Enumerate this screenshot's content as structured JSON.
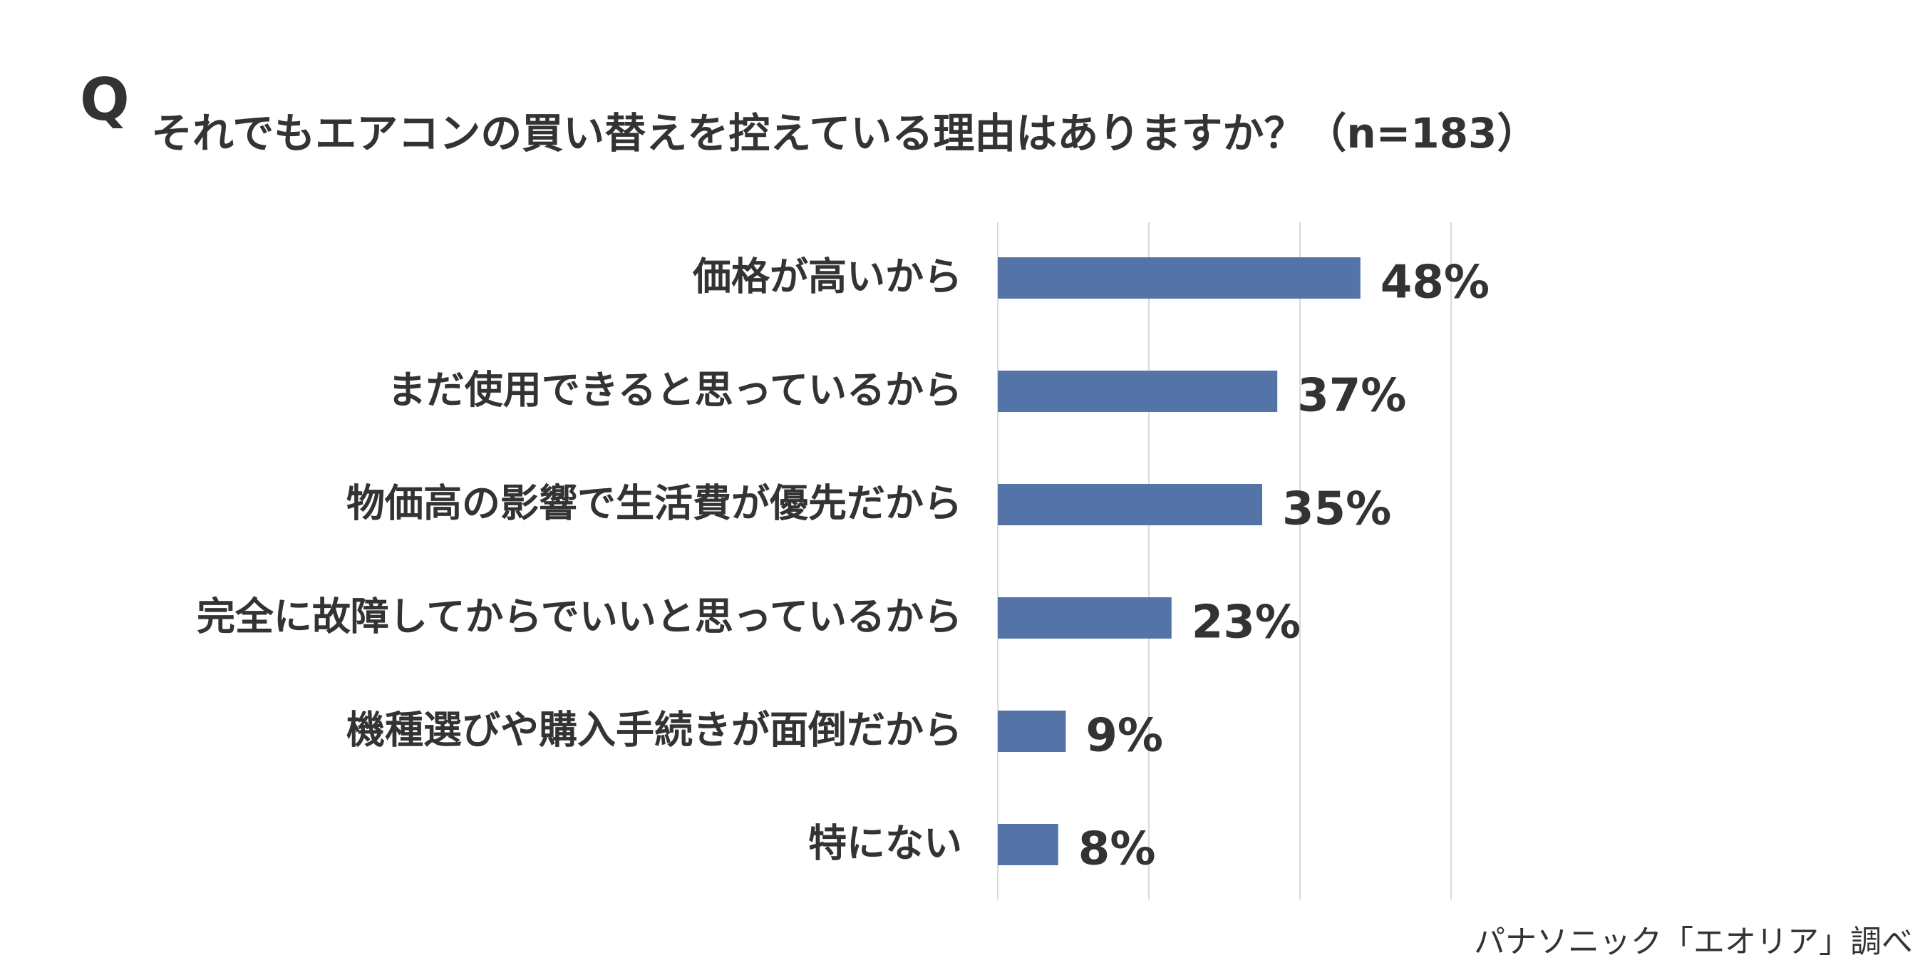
{
  "header": {
    "q_mark": "Q",
    "title": "それでもエアコンの買い替えを控えている理由はありますか？（n=183）"
  },
  "source_note": "パナソニック「エオリア」調べ",
  "colors": {
    "bar": "#5474A8",
    "grid": "#D9D9D9",
    "text": "#333333"
  },
  "chart_data": {
    "type": "bar",
    "orientation": "horizontal",
    "title": "",
    "xlabel": "",
    "ylabel": "",
    "categories": [
      "価格が高いから",
      "まだ使用できると思っているから",
      "物価高の影響で生活費が優先だから",
      "完全に故障してからでいいと思っているから",
      "機種選びや購入手続きが面倒だから",
      "特にない"
    ],
    "values": [
      48,
      37,
      35,
      23,
      9,
      8
    ],
    "value_labels": [
      "48%",
      "37%",
      "35%",
      "23%",
      "9%",
      "8%"
    ],
    "unit": "%",
    "xlim": [
      0,
      60
    ],
    "gridlines_at": [
      0,
      20,
      40,
      60
    ],
    "grid": true,
    "legend": "none"
  }
}
